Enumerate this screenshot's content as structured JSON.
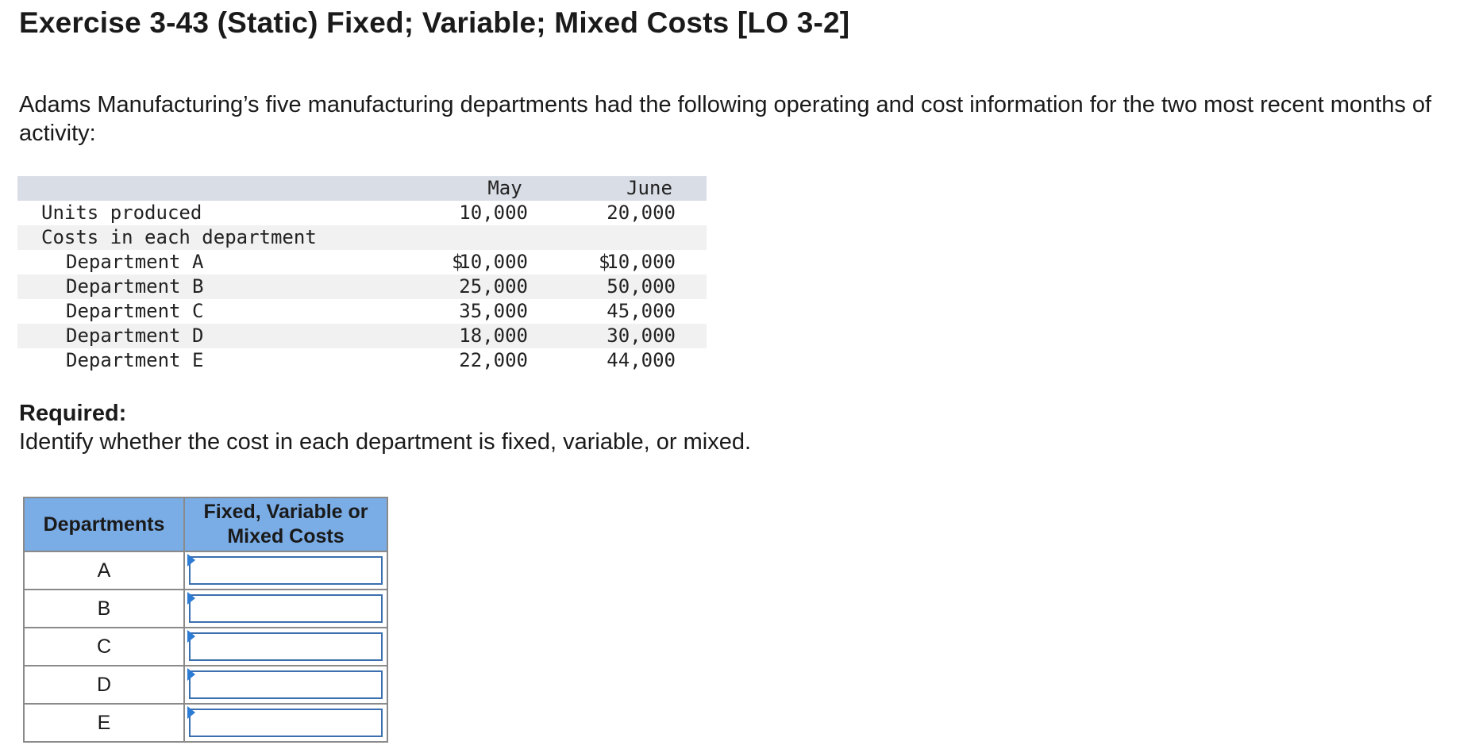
{
  "title": "Exercise 3-43 (Static) Fixed; Variable; Mixed Costs [LO 3-2]",
  "intro": "Adams Manufacturing’s five manufacturing departments had the following operating and cost information for the two most recent months of activity:",
  "data_table": {
    "columns": [
      "May",
      "June"
    ],
    "units_label": "Units produced",
    "units": [
      "10,000",
      "20,000"
    ],
    "costs_label": "Costs in each department",
    "currency_symbol": "$",
    "departments": [
      {
        "label": "Department A",
        "may": "10,000",
        "june": "10,000"
      },
      {
        "label": "Department B",
        "may": "25,000",
        "june": "50,000"
      },
      {
        "label": "Department C",
        "may": "35,000",
        "june": "45,000"
      },
      {
        "label": "Department D",
        "may": "18,000",
        "june": "30,000"
      },
      {
        "label": "Department E",
        "may": "22,000",
        "june": "44,000"
      }
    ]
  },
  "required": {
    "label": "Required:",
    "text": "Identify whether the cost in each department is fixed, variable, or mixed."
  },
  "answer_table": {
    "header_dept": "Departments",
    "header_type": "Fixed, Variable or Mixed Costs",
    "rows": [
      {
        "dept": "A",
        "value": ""
      },
      {
        "dept": "B",
        "value": ""
      },
      {
        "dept": "C",
        "value": ""
      },
      {
        "dept": "D",
        "value": ""
      },
      {
        "dept": "E",
        "value": ""
      }
    ]
  },
  "colors": {
    "header_fill": "#7aace6",
    "table_header_band": "#d9dde6",
    "row_shade": "#f1f1f1",
    "input_border": "#3b6fb0",
    "marker": "#2c7bd4"
  }
}
